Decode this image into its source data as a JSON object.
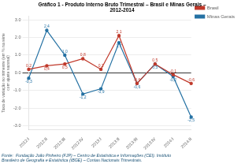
{
  "chart_data": {
    "type": "line",
    "title": "Gráfico 1 - Produto Interno Bruto Trimestral – Brasil e Minas Gerais –\n2012-2014",
    "ylabel": "Taxa de variação no trimestre (em % na série\ncom ajuste sazonal)",
    "footer": "Fonte:  Fundação João Pinheiro (FJP) – Centro de Estatística e Informações (CEI). Instituto\nBrasileiro de Geografia e Estatística (IBGE) – Contas Nacionais Trimestrais.",
    "categories": [
      "2012:I",
      "2012:II",
      "2012:III",
      "2012:IV",
      "2013:I",
      "2013:II",
      "2013:III",
      "2013:IV",
      "2014:I",
      "2014:II"
    ],
    "series": [
      {
        "name": "Brasil",
        "color": "#c0392b",
        "marker": "circle",
        "values": [
          0.2,
          0.4,
          0.5,
          0.8,
          0.2,
          2.1,
          -0.6,
          0.5,
          -0.1,
          -0.6
        ],
        "value_labels": [
          "0,2",
          "0,4",
          "0,5",
          "0,8",
          "0,2",
          "2,1",
          "-0,6",
          "0,5",
          "-0,1",
          "-0,6"
        ]
      },
      {
        "name": "Minas Gerais",
        "color": "#2471a3",
        "marker": "circle",
        "values": [
          -0.3,
          2.4,
          1.0,
          -1.2,
          -0.9,
          1.7,
          -0.6,
          0.5,
          -0.2,
          -2.5
        ],
        "value_labels": [
          "-0,3",
          "2,4",
          "1,0",
          "-1,2",
          "-0,9",
          "1,7",
          "-0,6",
          "0,5",
          "-0,2",
          "-2,5"
        ]
      }
    ],
    "ylim": [
      -3.2,
      3.2
    ],
    "yticks": [
      {
        "value": -3,
        "label": "-3.0"
      },
      {
        "value": -2,
        "label": "-2.0"
      },
      {
        "value": -1,
        "label": "-1.0"
      },
      {
        "value": 0,
        "label": "0.0"
      },
      {
        "value": 1,
        "label": "1.0"
      },
      {
        "value": 2,
        "label": "2.0"
      },
      {
        "value": 3,
        "label": "3.0"
      }
    ],
    "grid": true,
    "legend": "right",
    "data_labels": true
  }
}
